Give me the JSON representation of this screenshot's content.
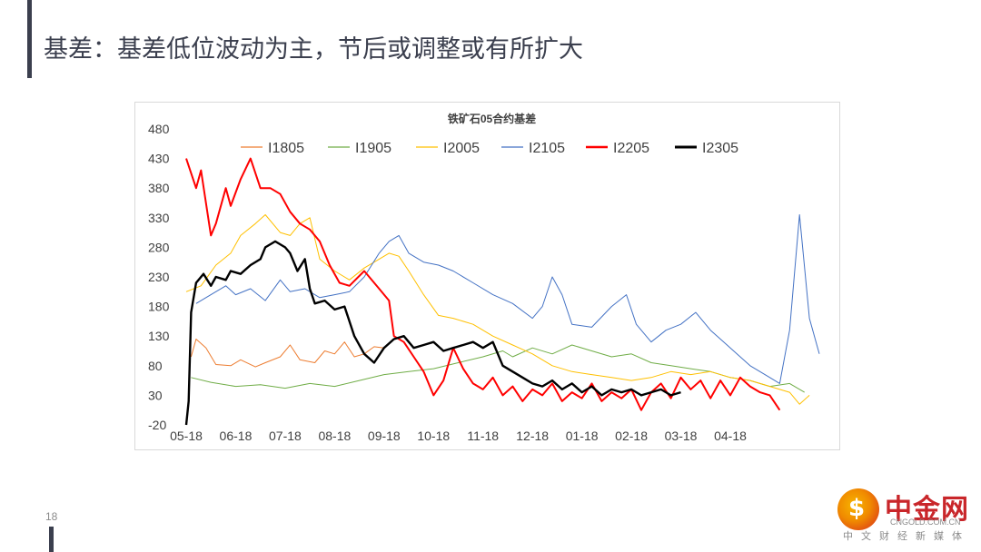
{
  "slide": {
    "title": "基差：基差低位波动为主，节后或调整或有所扩大",
    "page_number": "18"
  },
  "logo": {
    "name": "中金网",
    "url": "CNGOLD.COM.CN",
    "tagline": "中文财经新媒体"
  },
  "chart_data": {
    "type": "line",
    "title": "铁矿石05合约基差",
    "x_ticks": [
      "05-18",
      "06-18",
      "07-18",
      "08-18",
      "09-18",
      "10-18",
      "11-18",
      "12-18",
      "01-18",
      "02-18",
      "03-18",
      "04-18"
    ],
    "ylim": [
      -20,
      480
    ],
    "y_ticks": [
      "480",
      "430",
      "380",
      "330",
      "280",
      "230",
      "180",
      "130",
      "80",
      "30",
      "-20"
    ],
    "legend_position": "top",
    "series": [
      {
        "name": "I1805",
        "color": "#ed7d31",
        "width": 1,
        "points": [
          [
            0.1,
            95
          ],
          [
            0.2,
            125
          ],
          [
            0.4,
            110
          ],
          [
            0.6,
            82
          ],
          [
            0.9,
            80
          ],
          [
            1.1,
            90
          ],
          [
            1.4,
            78
          ],
          [
            1.6,
            85
          ],
          [
            1.9,
            95
          ],
          [
            2.1,
            115
          ],
          [
            2.3,
            90
          ],
          [
            2.6,
            85
          ],
          [
            2.8,
            105
          ],
          [
            3.0,
            100
          ],
          [
            3.2,
            120
          ],
          [
            3.4,
            95
          ],
          [
            3.6,
            100
          ],
          [
            3.8,
            112
          ],
          [
            4.0,
            110
          ]
        ]
      },
      {
        "name": "I1905",
        "color": "#70ad47",
        "width": 1,
        "points": [
          [
            0.1,
            60
          ],
          [
            0.5,
            52
          ],
          [
            1.0,
            45
          ],
          [
            1.5,
            48
          ],
          [
            2.0,
            42
          ],
          [
            2.5,
            50
          ],
          [
            3.0,
            45
          ],
          [
            3.5,
            55
          ],
          [
            4.0,
            65
          ],
          [
            4.5,
            70
          ],
          [
            5.0,
            75
          ],
          [
            5.5,
            85
          ],
          [
            6.0,
            95
          ],
          [
            6.4,
            105
          ],
          [
            6.6,
            95
          ],
          [
            7.0,
            110
          ],
          [
            7.4,
            100
          ],
          [
            7.8,
            115
          ],
          [
            8.2,
            105
          ],
          [
            8.6,
            95
          ],
          [
            9.0,
            100
          ],
          [
            9.4,
            85
          ],
          [
            9.8,
            80
          ],
          [
            10.2,
            75
          ],
          [
            10.6,
            70
          ],
          [
            11.0,
            60
          ],
          [
            11.4,
            55
          ],
          [
            11.8,
            45
          ],
          [
            12.2,
            50
          ],
          [
            12.5,
            35
          ]
        ]
      },
      {
        "name": "I2005",
        "color": "#ffc000",
        "width": 1,
        "points": [
          [
            0.0,
            205
          ],
          [
            0.3,
            215
          ],
          [
            0.6,
            250
          ],
          [
            0.9,
            270
          ],
          [
            1.1,
            300
          ],
          [
            1.4,
            320
          ],
          [
            1.6,
            335
          ],
          [
            1.9,
            305
          ],
          [
            2.1,
            300
          ],
          [
            2.3,
            320
          ],
          [
            2.5,
            330
          ],
          [
            2.7,
            260
          ],
          [
            3.0,
            240
          ],
          [
            3.3,
            225
          ],
          [
            3.6,
            245
          ],
          [
            3.9,
            260
          ],
          [
            4.1,
            270
          ],
          [
            4.3,
            265
          ],
          [
            4.5,
            240
          ],
          [
            4.8,
            200
          ],
          [
            5.1,
            165
          ],
          [
            5.4,
            160
          ],
          [
            5.8,
            150
          ],
          [
            6.2,
            130
          ],
          [
            6.6,
            115
          ],
          [
            7.0,
            100
          ],
          [
            7.4,
            80
          ],
          [
            7.8,
            70
          ],
          [
            8.2,
            65
          ],
          [
            8.6,
            60
          ],
          [
            9.0,
            55
          ],
          [
            9.4,
            60
          ],
          [
            9.8,
            70
          ],
          [
            10.2,
            65
          ],
          [
            10.6,
            70
          ],
          [
            11.0,
            60
          ],
          [
            11.4,
            55
          ],
          [
            11.8,
            45
          ],
          [
            12.2,
            35
          ],
          [
            12.4,
            15
          ],
          [
            12.6,
            30
          ]
        ]
      },
      {
        "name": "I2105",
        "color": "#4472c4",
        "width": 1,
        "points": [
          [
            0.2,
            185
          ],
          [
            0.5,
            200
          ],
          [
            0.8,
            215
          ],
          [
            1.0,
            200
          ],
          [
            1.3,
            210
          ],
          [
            1.6,
            190
          ],
          [
            1.9,
            225
          ],
          [
            2.1,
            205
          ],
          [
            2.4,
            210
          ],
          [
            2.7,
            195
          ],
          [
            3.0,
            200
          ],
          [
            3.3,
            205
          ],
          [
            3.6,
            230
          ],
          [
            3.9,
            270
          ],
          [
            4.1,
            290
          ],
          [
            4.3,
            300
          ],
          [
            4.5,
            270
          ],
          [
            4.8,
            255
          ],
          [
            5.1,
            250
          ],
          [
            5.4,
            240
          ],
          [
            5.8,
            220
          ],
          [
            6.2,
            200
          ],
          [
            6.6,
            185
          ],
          [
            7.0,
            160
          ],
          [
            7.2,
            180
          ],
          [
            7.4,
            230
          ],
          [
            7.6,
            200
          ],
          [
            7.8,
            150
          ],
          [
            8.2,
            145
          ],
          [
            8.6,
            180
          ],
          [
            8.9,
            200
          ],
          [
            9.1,
            150
          ],
          [
            9.4,
            120
          ],
          [
            9.7,
            140
          ],
          [
            10.0,
            150
          ],
          [
            10.3,
            170
          ],
          [
            10.6,
            140
          ],
          [
            11.0,
            110
          ],
          [
            11.4,
            80
          ],
          [
            11.8,
            60
          ],
          [
            12.0,
            50
          ],
          [
            12.2,
            140
          ],
          [
            12.4,
            335
          ],
          [
            12.6,
            160
          ],
          [
            12.8,
            100
          ]
        ]
      },
      {
        "name": "I2205",
        "color": "#ff0000",
        "width": 2,
        "points": [
          [
            0.0,
            430
          ],
          [
            0.2,
            380
          ],
          [
            0.3,
            410
          ],
          [
            0.5,
            300
          ],
          [
            0.6,
            320
          ],
          [
            0.8,
            380
          ],
          [
            0.9,
            350
          ],
          [
            1.1,
            395
          ],
          [
            1.3,
            430
          ],
          [
            1.5,
            380
          ],
          [
            1.7,
            380
          ],
          [
            1.9,
            370
          ],
          [
            2.1,
            340
          ],
          [
            2.3,
            320
          ],
          [
            2.5,
            310
          ],
          [
            2.7,
            290
          ],
          [
            2.9,
            250
          ],
          [
            3.1,
            220
          ],
          [
            3.3,
            215
          ],
          [
            3.6,
            240
          ],
          [
            3.9,
            210
          ],
          [
            4.1,
            190
          ],
          [
            4.2,
            130
          ],
          [
            4.4,
            120
          ],
          [
            4.6,
            95
          ],
          [
            4.8,
            70
          ],
          [
            5.0,
            30
          ],
          [
            5.2,
            55
          ],
          [
            5.4,
            110
          ],
          [
            5.6,
            75
          ],
          [
            5.8,
            50
          ],
          [
            6.0,
            40
          ],
          [
            6.2,
            60
          ],
          [
            6.4,
            30
          ],
          [
            6.6,
            45
          ],
          [
            6.8,
            20
          ],
          [
            7.0,
            40
          ],
          [
            7.2,
            30
          ],
          [
            7.4,
            50
          ],
          [
            7.6,
            20
          ],
          [
            7.8,
            35
          ],
          [
            8.0,
            25
          ],
          [
            8.2,
            50
          ],
          [
            8.4,
            20
          ],
          [
            8.6,
            35
          ],
          [
            8.8,
            25
          ],
          [
            9.0,
            40
          ],
          [
            9.2,
            5
          ],
          [
            9.4,
            35
          ],
          [
            9.6,
            50
          ],
          [
            9.8,
            25
          ],
          [
            10.0,
            60
          ],
          [
            10.2,
            40
          ],
          [
            10.4,
            55
          ],
          [
            10.6,
            25
          ],
          [
            10.8,
            55
          ],
          [
            11.0,
            30
          ],
          [
            11.2,
            60
          ],
          [
            11.4,
            45
          ],
          [
            11.6,
            35
          ],
          [
            11.8,
            30
          ],
          [
            12.0,
            5
          ]
        ]
      },
      {
        "name": "I2305",
        "color": "#000000",
        "width": 2.4,
        "points": [
          [
            0.0,
            -20
          ],
          [
            0.05,
            20
          ],
          [
            0.1,
            170
          ],
          [
            0.2,
            220
          ],
          [
            0.35,
            235
          ],
          [
            0.5,
            215
          ],
          [
            0.6,
            230
          ],
          [
            0.8,
            225
          ],
          [
            0.9,
            240
          ],
          [
            1.1,
            235
          ],
          [
            1.3,
            250
          ],
          [
            1.5,
            260
          ],
          [
            1.6,
            280
          ],
          [
            1.8,
            290
          ],
          [
            2.0,
            280
          ],
          [
            2.1,
            270
          ],
          [
            2.25,
            240
          ],
          [
            2.4,
            260
          ],
          [
            2.5,
            210
          ],
          [
            2.6,
            185
          ],
          [
            2.8,
            190
          ],
          [
            3.0,
            175
          ],
          [
            3.2,
            180
          ],
          [
            3.4,
            130
          ],
          [
            3.6,
            100
          ],
          [
            3.8,
            85
          ],
          [
            4.0,
            110
          ],
          [
            4.2,
            125
          ],
          [
            4.4,
            130
          ],
          [
            4.6,
            110
          ],
          [
            4.8,
            115
          ],
          [
            5.0,
            120
          ],
          [
            5.2,
            105
          ],
          [
            5.4,
            110
          ],
          [
            5.6,
            115
          ],
          [
            5.8,
            120
          ],
          [
            6.0,
            110
          ],
          [
            6.2,
            120
          ],
          [
            6.4,
            80
          ],
          [
            6.6,
            70
          ],
          [
            6.8,
            60
          ],
          [
            7.0,
            50
          ],
          [
            7.2,
            45
          ],
          [
            7.4,
            55
          ],
          [
            7.6,
            40
          ],
          [
            7.8,
            50
          ],
          [
            8.0,
            35
          ],
          [
            8.2,
            45
          ],
          [
            8.4,
            30
          ],
          [
            8.6,
            40
          ],
          [
            8.8,
            35
          ],
          [
            9.0,
            40
          ],
          [
            9.2,
            30
          ],
          [
            9.4,
            35
          ],
          [
            9.6,
            40
          ],
          [
            9.8,
            30
          ],
          [
            10.0,
            35
          ]
        ]
      }
    ]
  }
}
